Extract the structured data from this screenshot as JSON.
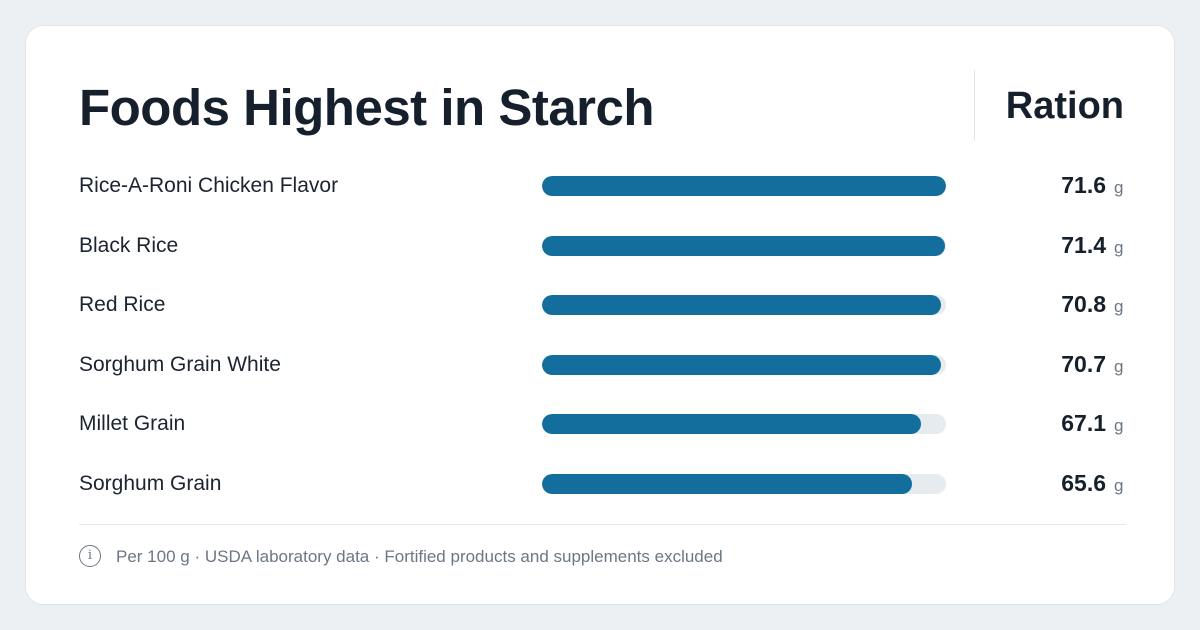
{
  "header": {
    "title": "Foods Highest in Starch",
    "brand": "Ration"
  },
  "colors": {
    "bar_fill": "#136e9d",
    "bar_track": "#e6ebf0",
    "background": "#edf0f3"
  },
  "footer": {
    "icon": "info-icon",
    "text": "Per 100 g · USDA laboratory data · Fortified products and supplements excluded"
  },
  "chart_data": {
    "type": "bar",
    "orientation": "horizontal",
    "categories": [
      "Rice-A-Roni Chicken Flavor",
      "Black Rice",
      "Red Rice",
      "Sorghum Grain White",
      "Millet Grain",
      "Sorghum Grain"
    ],
    "values": [
      71.6,
      71.4,
      70.8,
      70.7,
      67.1,
      65.6
    ],
    "value_labels": [
      "71.6",
      "71.4",
      "70.8",
      "70.7",
      "67.1",
      "65.6"
    ],
    "unit": "g",
    "xlim": [
      0,
      71.6
    ],
    "title": "Foods Highest in Starch"
  }
}
